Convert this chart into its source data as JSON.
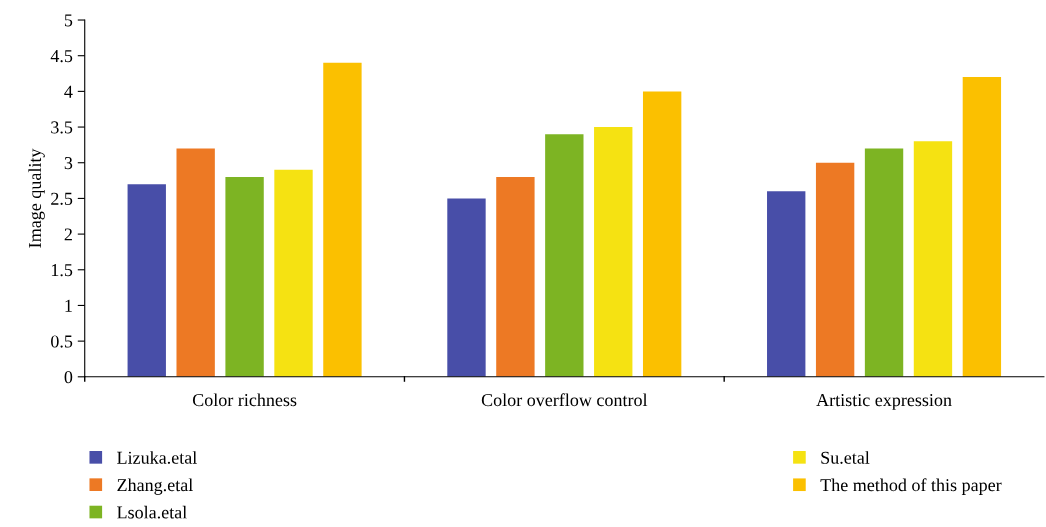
{
  "chart_data": {
    "type": "bar",
    "ylabel": "Image quality",
    "categories": [
      "Color richness",
      "Color overflow control",
      "Artistic expression"
    ],
    "series": [
      {
        "name": "Lizuka.etal",
        "color": "#484ea8",
        "values": [
          2.7,
          2.5,
          2.6
        ]
      },
      {
        "name": "Zhang.etal",
        "color": "#ed7924",
        "values": [
          3.2,
          2.8,
          3.0
        ]
      },
      {
        "name": "Lsola.etal",
        "color": "#7db423",
        "values": [
          2.8,
          3.4,
          3.2
        ]
      },
      {
        "name": "Su.etal",
        "color": "#f5e212",
        "values": [
          2.9,
          3.5,
          3.3
        ]
      },
      {
        "name": "The method of this paper",
        "color": "#fbc000",
        "values": [
          4.4,
          4.0,
          4.2
        ]
      }
    ],
    "ylim": [
      0,
      5
    ],
    "yticks": [
      0,
      {
        "value": 0.5,
        "label": "0.5"
      },
      1,
      {
        "value": 1.5,
        "label": "1.5"
      },
      2,
      {
        "value": 2.5,
        "label": "2.5"
      },
      3,
      {
        "value": 3.5,
        "label": "3.5"
      },
      4,
      {
        "value": 4.5,
        "label": "4.5"
      },
      5
    ],
    "grid": false,
    "legend": "bottom"
  }
}
